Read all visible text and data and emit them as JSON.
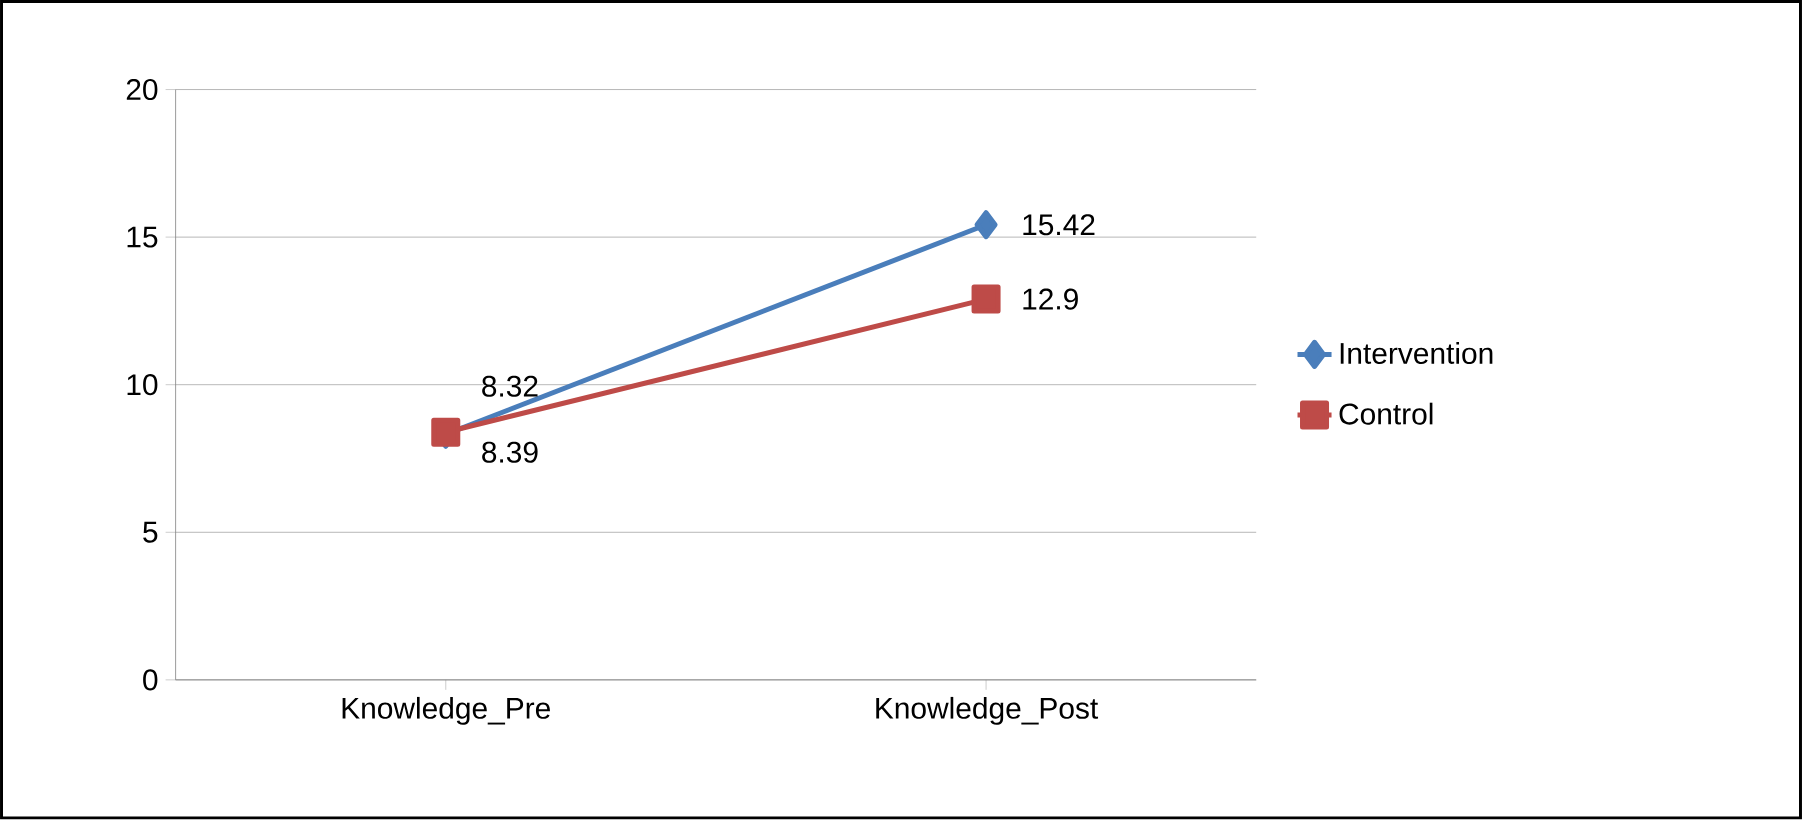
{
  "chart_data": {
    "type": "line",
    "categories": [
      "Knowledge_Pre",
      "Knowledge_Post"
    ],
    "series": [
      {
        "name": "Intervention",
        "color": "#4a7ebb",
        "values": [
          8.32,
          15.42
        ],
        "marker": "diamond"
      },
      {
        "name": "Control",
        "color": "#be4b48",
        "values": [
          8.39,
          12.9
        ],
        "marker": "square"
      }
    ],
    "ylim": [
      0,
      20
    ],
    "yticks": [
      0,
      5,
      10,
      15,
      20
    ],
    "grid": "y",
    "legend": "right",
    "data_labels": true
  }
}
